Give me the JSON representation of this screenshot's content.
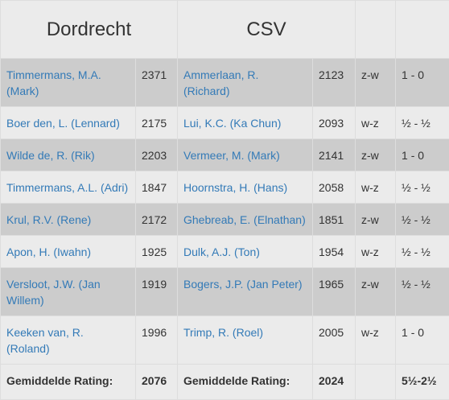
{
  "header": {
    "team_home": "Dordrecht",
    "team_away": "CSV"
  },
  "rows": [
    {
      "home_player": "Timmermans, M.A. (Mark)",
      "home_rating": "2371",
      "away_player": "Ammerlaan, R. (Richard)",
      "away_rating": "2123",
      "colors": "z-w",
      "result": "1 - 0"
    },
    {
      "home_player": "Boer den, L. (Lennard)",
      "home_rating": "2175",
      "away_player": "Lui, K.C. (Ka Chun)",
      "away_rating": "2093",
      "colors": "w-z",
      "result": "½ - ½"
    },
    {
      "home_player": "Wilde de, R. (Rik)",
      "home_rating": "2203",
      "away_player": "Vermeer, M. (Mark)",
      "away_rating": "2141",
      "colors": "z-w",
      "result": "1 - 0"
    },
    {
      "home_player": "Timmermans, A.L. (Adri)",
      "home_rating": "1847",
      "away_player": "Hoornstra, H. (Hans)",
      "away_rating": "2058",
      "colors": "w-z",
      "result": "½ - ½"
    },
    {
      "home_player": "Krul, R.V. (Rene)",
      "home_rating": "2172",
      "away_player": "Ghebreab, E. (Elnathan)",
      "away_rating": "1851",
      "colors": "z-w",
      "result": "½ - ½"
    },
    {
      "home_player": "Apon, H. (Iwahn)",
      "home_rating": "1925",
      "away_player": "Dulk, A.J. (Ton)",
      "away_rating": "1954",
      "colors": "w-z",
      "result": "½ - ½"
    },
    {
      "home_player": "Versloot, J.W. (Jan Willem)",
      "home_rating": "1919",
      "away_player": "Bogers, J.P. (Jan Peter)",
      "away_rating": "1965",
      "colors": "z-w",
      "result": "½ - ½"
    },
    {
      "home_player": "Keeken van, R. (Roland)",
      "home_rating": "1996",
      "away_player": "Trimp, R. (Roel)",
      "away_rating": "2005",
      "colors": "w-z",
      "result": "1 - 0"
    }
  ],
  "footer": {
    "home_label": "Gemiddelde Rating:",
    "home_avg": "2076",
    "away_label": "Gemiddelde Rating:",
    "away_avg": "2024",
    "total": "5½-2½"
  }
}
